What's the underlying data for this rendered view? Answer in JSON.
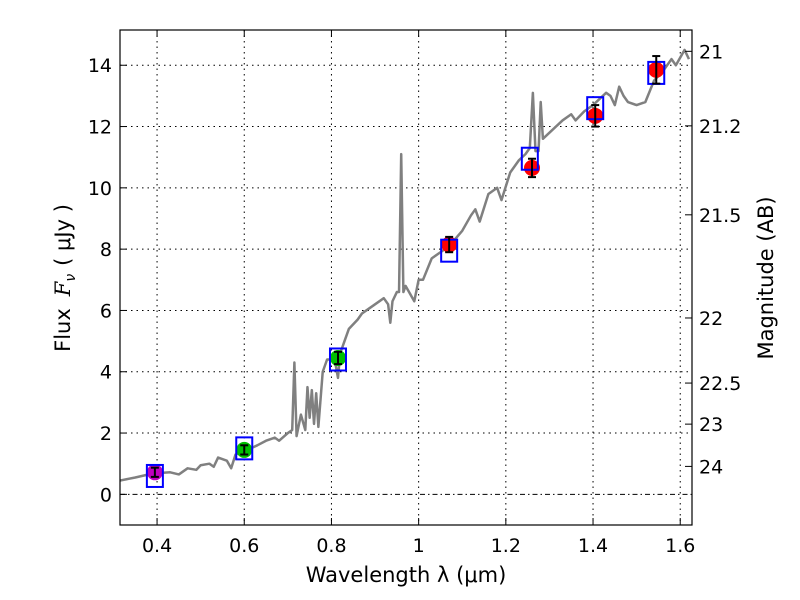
{
  "chart_data": {
    "type": "line",
    "xlabel": "Wavelength  λ (μm)",
    "ylabel_prefix": "Flux",
    "ylabel_symbol": "F",
    "ylabel_sub": "ν",
    "ylabel_unit": "( μJy )",
    "y2label": "Magnitude (AB)",
    "xlim": [
      0.315,
      1.627
    ],
    "ylim": [
      -1,
      15.15
    ],
    "grid": true,
    "xticks": [
      0.4,
      0.6,
      0.8,
      1.0,
      1.2,
      1.4,
      1.6
    ],
    "xtick_labels": [
      "0.4",
      "0.6",
      "0.8",
      "1",
      "1.2",
      "1.4",
      "1.6"
    ],
    "yticks": [
      0,
      2,
      4,
      6,
      8,
      10,
      12,
      14
    ],
    "ytick_labels": [
      "0",
      "2",
      "4",
      "6",
      "8",
      "10",
      "12",
      "14"
    ],
    "y2ticks": [
      21,
      21.2,
      21.5,
      22,
      22.5,
      23,
      24
    ],
    "y2tick_labels": [
      "21",
      "21.2",
      "21.5",
      "22",
      "22.5",
      "23",
      "24"
    ],
    "spectrum": {
      "name": "model spectrum",
      "color": "#808080",
      "x": [
        0.315,
        0.35,
        0.39,
        0.43,
        0.45,
        0.47,
        0.49,
        0.5,
        0.52,
        0.53,
        0.54,
        0.56,
        0.57,
        0.58,
        0.6,
        0.63,
        0.65,
        0.67,
        0.68,
        0.7,
        0.71,
        0.715,
        0.72,
        0.73,
        0.74,
        0.745,
        0.75,
        0.755,
        0.76,
        0.765,
        0.77,
        0.78,
        0.79,
        0.8,
        0.81,
        0.815,
        0.82,
        0.83,
        0.84,
        0.86,
        0.87,
        0.88,
        0.9,
        0.92,
        0.93,
        0.935,
        0.94,
        0.95,
        0.955,
        0.96,
        0.965,
        0.97,
        0.99,
        1.0,
        1.01,
        1.03,
        1.05,
        1.07,
        1.1,
        1.12,
        1.13,
        1.14,
        1.16,
        1.18,
        1.19,
        1.21,
        1.23,
        1.245,
        1.255,
        1.262,
        1.268,
        1.275,
        1.28,
        1.285,
        1.3,
        1.33,
        1.35,
        1.36,
        1.38,
        1.4,
        1.43,
        1.44,
        1.45,
        1.46,
        1.47,
        1.48,
        1.5,
        1.52,
        1.54,
        1.56,
        1.58,
        1.59,
        1.61,
        1.62
      ],
      "y": [
        0.45,
        0.55,
        0.68,
        0.72,
        0.65,
        0.85,
        0.8,
        0.95,
        1.0,
        0.9,
        1.2,
        1.1,
        0.85,
        1.3,
        1.4,
        1.6,
        1.75,
        1.85,
        1.75,
        2.0,
        2.1,
        4.3,
        1.9,
        2.6,
        2.1,
        3.5,
        2.5,
        3.4,
        2.3,
        3.3,
        2.2,
        4.0,
        4.4,
        4.4,
        4.2,
        3.8,
        4.6,
        5.0,
        5.4,
        5.7,
        5.9,
        6.0,
        6.2,
        6.4,
        6.2,
        5.6,
        6.3,
        6.6,
        6.6,
        11.1,
        6.6,
        6.8,
        6.3,
        7.0,
        7.0,
        7.7,
        7.9,
        8.1,
        8.6,
        9.1,
        9.3,
        8.9,
        9.8,
        10.0,
        9.6,
        10.5,
        10.9,
        11.1,
        11.3,
        13.1,
        11.2,
        11.2,
        12.8,
        11.6,
        11.8,
        12.2,
        12.4,
        12.2,
        12.5,
        12.7,
        13.1,
        13.0,
        12.7,
        13.3,
        13.0,
        12.8,
        12.7,
        12.8,
        13.5,
        13.8,
        14.2,
        14.0,
        14.5,
        14.2
      ]
    },
    "model_points": {
      "name": "model photometry",
      "color": "#0000ff",
      "x": [
        0.395,
        0.6,
        0.815,
        1.07,
        1.255,
        1.405,
        1.545
      ],
      "y": [
        0.6,
        1.5,
        4.4,
        7.95,
        10.95,
        12.6,
        13.75
      ]
    },
    "observed_points": {
      "name": "observed photometry",
      "x": [
        0.395,
        0.6,
        0.815,
        1.07,
        1.26,
        1.405,
        1.545
      ],
      "y": [
        0.72,
        1.45,
        4.45,
        8.15,
        10.65,
        12.35,
        13.85
      ],
      "err": [
        0.15,
        0.15,
        0.2,
        0.25,
        0.3,
        0.35,
        0.45
      ],
      "colors": [
        "#bf00bf",
        "#00bf00",
        "#00bf00",
        "#ff0000",
        "#ff0000",
        "#ff0000",
        "#ff0000"
      ]
    }
  }
}
